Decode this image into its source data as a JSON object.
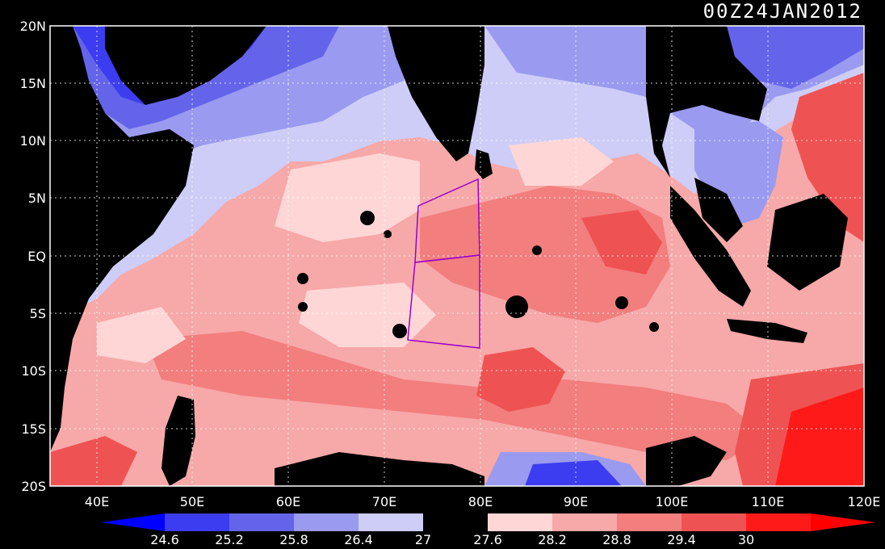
{
  "title": "00Z24JAN2012",
  "lat_labels": [
    "20N",
    "15N",
    "10N",
    "5N",
    "EQ",
    "5S",
    "10S",
    "15S",
    "20S"
  ],
  "lon_labels": [
    "40E",
    "50E",
    "60E",
    "70E",
    "80E",
    "90E",
    "100E",
    "110E",
    "120E"
  ],
  "colorbar": {
    "labels": [
      "24.6",
      "25.2",
      "25.8",
      "26.4",
      "27",
      "27.6",
      "28.2",
      "28.8",
      "29.4",
      "30"
    ],
    "colors": [
      "#0000ff",
      "#3c3cf0",
      "#6464ea",
      "#9a9af0",
      "#cdcdf7",
      "#000000",
      "#ffd6d6",
      "#f7a8a8",
      "#f27e7e",
      "#ef5252",
      "#ff1a1a",
      "#ff0000"
    ]
  },
  "colors": {
    "land": "#000000",
    "background": "#000000",
    "box": "#9900cc",
    "grid": "#ffffff"
  }
}
